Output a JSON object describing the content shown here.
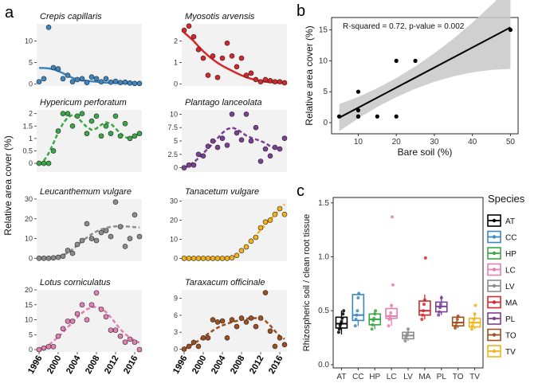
{
  "panel_letters": {
    "a": "a",
    "b": "b",
    "c": "c"
  },
  "panel_a_ylabel": "Relative area cover (%)",
  "chart_data": [
    {
      "panel": "a",
      "type": "scatter",
      "title": "Crepis capillaris",
      "color": "#3b87c4",
      "x": [
        1996,
        1997,
        1998,
        1999,
        2000,
        2001,
        2002,
        2003,
        2004,
        2005,
        2006,
        2007,
        2008,
        2009,
        2010,
        2011,
        2012,
        2013,
        2014,
        2015,
        2016,
        2017
      ],
      "y": [
        0.5,
        1.2,
        13.2,
        3.8,
        3.5,
        1.2,
        2.0,
        0.5,
        1.0,
        1.2,
        0.3,
        1.6,
        1.2,
        0.5,
        1.2,
        0.4,
        0.6,
        0.3,
        0.4,
        0.2,
        0.1,
        0.1
      ],
      "fit": [
        3.7,
        3.7,
        3.6,
        3.4,
        3.0,
        2.5,
        1.9,
        1.4,
        1.0,
        0.8,
        0.7,
        0.6,
        0.5,
        0.4,
        0.3,
        0.25,
        0.2,
        0.15,
        0.1,
        0.1,
        0.1,
        0.1
      ],
      "ylim": [
        -0.5,
        14
      ],
      "yticks": [
        0,
        5,
        10
      ]
    },
    {
      "panel": "a",
      "type": "scatter",
      "title": "Myosotis arvensis",
      "color": "#d7262b",
      "x": [
        1996,
        1997,
        1998,
        1999,
        2000,
        2001,
        2002,
        2003,
        2004,
        2005,
        2006,
        2007,
        2008,
        2009,
        2010,
        2011,
        2012,
        2013,
        2014,
        2015,
        2016,
        2017
      ],
      "y": [
        2.5,
        2.7,
        2.2,
        1.6,
        1.2,
        0.4,
        1.3,
        0.3,
        1.2,
        1.9,
        1.3,
        0.8,
        1.2,
        0.4,
        0.5,
        0.2,
        0.1,
        0.2,
        0.15,
        0.1,
        0.1,
        0.05
      ],
      "fit": [
        2.4,
        2.2,
        2.0,
        1.75,
        1.52,
        1.32,
        1.14,
        0.98,
        0.84,
        0.72,
        0.61,
        0.5,
        0.4,
        0.31,
        0.24,
        0.18,
        0.13,
        0.1,
        0.08,
        0.07,
        0.06,
        0.05
      ],
      "ylim": [
        -0.1,
        2.8
      ],
      "yticks": [
        0,
        1,
        2
      ]
    },
    {
      "panel": "a",
      "type": "scatter",
      "title": "Hypericum perforatum",
      "color": "#3aa846",
      "x": [
        1996,
        1997,
        1998,
        1999,
        2000,
        2001,
        2002,
        2003,
        2004,
        2005,
        2006,
        2007,
        2008,
        2009,
        2010,
        2011,
        2012,
        2013,
        2014,
        2015,
        2016,
        2017
      ],
      "y": [
        0.0,
        0.0,
        0.0,
        0.5,
        1.3,
        2.0,
        2.0,
        1.5,
        1.9,
        2.0,
        1.2,
        1.7,
        1.9,
        1.1,
        1.5,
        1.2,
        1.9,
        1.1,
        1.6,
        1.0,
        1.1,
        1.2
      ],
      "fit": [
        null,
        0.1,
        0.4,
        0.8,
        1.25,
        1.6,
        1.85,
        1.95,
        1.85,
        1.65,
        1.45,
        1.35,
        1.4,
        1.55,
        1.65,
        1.6,
        1.4,
        1.2,
        1.05,
        1.0,
        1.1,
        1.2
      ],
      "ylim": [
        -0.35,
        2.15
      ],
      "yticks": [
        0.0,
        0.5,
        1.0,
        1.5,
        2.0
      ]
    },
    {
      "panel": "a",
      "type": "scatter",
      "title": "Plantago lanceolata",
      "color": "#7b3f96",
      "x": [
        1996,
        1997,
        1998,
        1999,
        2000,
        2001,
        2002,
        2003,
        2004,
        2005,
        2006,
        2007,
        2008,
        2009,
        2010,
        2011,
        2012,
        2013,
        2014,
        2015,
        2016,
        2017
      ],
      "y": [
        0.0,
        0.5,
        0.5,
        2.5,
        2.2,
        4.0,
        5.0,
        3.8,
        5.5,
        4.2,
        10.0,
        6.5,
        5.2,
        10.0,
        5.0,
        7.5,
        1.2,
        3.5,
        2.2,
        3.8,
        3.5,
        5.5
      ],
      "fit": [
        0.0,
        0.4,
        1.0,
        1.8,
        2.7,
        3.6,
        4.5,
        5.5,
        6.5,
        7.2,
        7.5,
        7.2,
        6.6,
        6.0,
        5.6,
        5.3,
        5.0,
        4.6,
        4.0,
        3.6,
        3.4,
        3.6
      ],
      "ylim": [
        -0.8,
        10.8
      ],
      "yticks": [
        0.0,
        2.5,
        5.0,
        7.5,
        10.0
      ]
    },
    {
      "panel": "a",
      "type": "scatter",
      "title": "Leucanthemum vulgare",
      "color": "#8c8c8c",
      "x": [
        1996,
        1997,
        1998,
        1999,
        2000,
        2001,
        2002,
        2003,
        2004,
        2005,
        2006,
        2007,
        2008,
        2009,
        2010,
        2011,
        2012,
        2013,
        2014,
        2015,
        2016,
        2017
      ],
      "y": [
        0.0,
        0.0,
        0.0,
        0.2,
        0.5,
        1.0,
        4.0,
        2.5,
        7.0,
        9.0,
        17.5,
        10.0,
        9.0,
        13.0,
        14.0,
        11.0,
        28.5,
        16.0,
        6.0,
        10.0,
        22.0,
        11.0
      ],
      "fit": [
        0.0,
        0.0,
        0.1,
        0.3,
        0.8,
        1.6,
        2.8,
        4.5,
        6.5,
        8.6,
        10.5,
        12.2,
        13.6,
        14.6,
        15.4,
        15.9,
        16.2,
        16.3,
        16.2,
        16.0,
        15.8,
        15.6
      ],
      "ylim": [
        -1.5,
        30
      ],
      "yticks": [
        0,
        10,
        20,
        30
      ]
    },
    {
      "panel": "a",
      "type": "scatter",
      "title": "Tanacetum vulgare",
      "color": "#f4b218",
      "x": [
        1996,
        1997,
        1998,
        1999,
        2000,
        2001,
        2002,
        2003,
        2004,
        2005,
        2006,
        2007,
        2008,
        2009,
        2010,
        2011,
        2012,
        2013,
        2014,
        2015,
        2016,
        2017
      ],
      "y": [
        0.0,
        0.0,
        0.0,
        0.0,
        0.0,
        0.0,
        0.0,
        0.0,
        0.0,
        0.0,
        0.3,
        1.5,
        4.0,
        6.0,
        9.0,
        11.0,
        16.0,
        19.0,
        20.0,
        23.0,
        26.0,
        23.0
      ],
      "fit": [
        0.0,
        0.0,
        0.0,
        0.0,
        0.0,
        0.0,
        0.0,
        0.0,
        0.0,
        0.1,
        0.8,
        2.2,
        4.3,
        6.7,
        9.3,
        12.0,
        14.8,
        17.6,
        20.3,
        23.0,
        25.7,
        28.3
      ],
      "ylim": [
        -1.5,
        31
      ],
      "yticks": [
        0,
        10,
        20,
        30
      ]
    },
    {
      "panel": "a",
      "type": "scatter",
      "title": "Lotus corniculatus",
      "color": "#e47fb3",
      "x": [
        1996,
        1997,
        1998,
        1999,
        2000,
        2001,
        2002,
        2003,
        2004,
        2005,
        2006,
        2007,
        2008,
        2009,
        2010,
        2011,
        2012,
        2013,
        2014,
        2015,
        2016,
        2017
      ],
      "y": [
        0.0,
        0.5,
        1.0,
        1.0,
        4.5,
        7.0,
        9.5,
        9.5,
        12.0,
        15.0,
        10.0,
        15.0,
        19.0,
        13.5,
        11.0,
        6.5,
        6.5,
        4.5,
        2.5,
        3.5,
        2.5,
        0.0
      ],
      "fit": [
        null,
        0.5,
        1.5,
        2.8,
        4.2,
        5.8,
        7.5,
        9.2,
        10.8,
        12.3,
        13.5,
        14.2,
        14.3,
        13.8,
        12.6,
        10.8,
        8.8,
        6.8,
        5.2,
        4.0,
        3.0,
        2.3
      ],
      "ylim": [
        -0.8,
        20
      ],
      "yticks": [
        0,
        5,
        10,
        15,
        20
      ]
    },
    {
      "panel": "a",
      "type": "scatter",
      "title": "Taraxacum officinale",
      "color": "#9d4f1e",
      "x": [
        1996,
        1997,
        1998,
        1999,
        2000,
        2001,
        2002,
        2003,
        2004,
        2005,
        2006,
        2007,
        2008,
        2009,
        2010,
        2011,
        2012,
        2013,
        2014,
        2015,
        2016,
        2017
      ],
      "y": [
        0.0,
        0.5,
        1.2,
        0.5,
        2.0,
        2.0,
        5.2,
        4.8,
        5.0,
        2.0,
        5.2,
        4.0,
        5.5,
        4.8,
        5.5,
        4.0,
        5.5,
        10.0,
        3.2,
        0.5,
        2.0,
        0.8
      ],
      "fit": [
        0.0,
        0.5,
        1.0,
        1.5,
        2.1,
        2.7,
        3.3,
        3.8,
        4.2,
        4.5,
        4.8,
        5.0,
        5.2,
        5.4,
        5.5,
        5.5,
        5.4,
        5.0,
        4.2,
        3.2,
        2.3,
        1.8
      ],
      "ylim": [
        -0.5,
        10.5
      ],
      "yticks": [
        0,
        3,
        6,
        9
      ]
    },
    {
      "panel": "b",
      "type": "scatter",
      "xlabel": "Bare soil (%)",
      "ylabel": "Relative area cover (%)",
      "annotation": "R-squared = 0.72, p-value = 0.002",
      "x": [
        5,
        10,
        10,
        10,
        10,
        15,
        20,
        20,
        25,
        50
      ],
      "y": [
        1,
        1,
        5,
        2,
        1,
        1,
        10,
        1,
        10,
        15
      ],
      "fit_line": {
        "x": [
          5,
          50
        ],
        "y": [
          0.8,
          15.4
        ]
      },
      "xlim": [
        3,
        52
      ],
      "ylim": [
        -1.8,
        17
      ],
      "xticks": [
        10,
        20,
        30,
        40,
        50
      ],
      "yticks": [
        0,
        5,
        10,
        15
      ]
    },
    {
      "panel": "c",
      "type": "boxplot",
      "ylabel": "Rhizospheric soil / clean root tissue",
      "legend_title": "Species",
      "categories": [
        "AT",
        "CC",
        "HP",
        "LC",
        "LV",
        "MA",
        "PL",
        "TO",
        "TV"
      ],
      "colors": [
        "#000000",
        "#3b87c4",
        "#3aa846",
        "#e47fb3",
        "#8c8c8c",
        "#d7262b",
        "#7b3f96",
        "#9d4f1e",
        "#f4b218"
      ],
      "boxes": [
        {
          "min": 0.28,
          "q1": 0.34,
          "median": 0.38,
          "q3": 0.44,
          "max": 0.5
        },
        {
          "min": 0.36,
          "q1": 0.41,
          "median": 0.46,
          "q3": 0.65,
          "max": 0.66
        },
        {
          "min": 0.33,
          "q1": 0.37,
          "median": 0.42,
          "q3": 0.47,
          "max": 0.5
        },
        {
          "min": 0.36,
          "q1": 0.43,
          "median": 0.45,
          "q3": 0.52,
          "max": 0.56
        },
        {
          "min": 0.22,
          "q1": 0.24,
          "median": 0.27,
          "q3": 0.3,
          "max": 0.33
        },
        {
          "min": 0.42,
          "q1": 0.46,
          "median": 0.5,
          "q3": 0.59,
          "max": 0.65
        },
        {
          "min": 0.46,
          "q1": 0.49,
          "median": 0.54,
          "q3": 0.58,
          "max": 0.64
        },
        {
          "min": 0.34,
          "q1": 0.36,
          "median": 0.39,
          "q3": 0.44,
          "max": 0.45
        },
        {
          "min": 0.33,
          "q1": 0.35,
          "median": 0.39,
          "q3": 0.43,
          "max": 0.47
        }
      ],
      "points": [
        [
          0.3,
          0.33,
          0.36,
          0.38,
          0.4,
          0.43,
          0.47,
          0.5
        ],
        [
          0.36,
          0.42,
          0.46,
          0.5,
          0.62,
          0.66
        ],
        [
          0.33,
          0.37,
          0.41,
          0.43,
          0.47,
          0.5
        ],
        [
          0.36,
          0.42,
          0.45,
          0.48,
          0.55,
          1.37,
          0.74
        ],
        [
          0.22,
          0.25,
          0.27,
          0.29,
          0.33
        ],
        [
          0.42,
          0.46,
          0.5,
          0.56,
          0.6,
          0.99
        ],
        [
          0.46,
          0.49,
          0.53,
          0.56,
          0.62
        ],
        [
          0.34,
          0.36,
          0.39,
          0.42,
          0.45
        ],
        [
          0.33,
          0.36,
          0.39,
          0.42,
          0.47,
          0.55
        ]
      ],
      "ylim": [
        -0.03,
        1.55
      ],
      "yticks": [
        0.0,
        0.5,
        1.0,
        1.5
      ],
      "ytick_labels": [
        "0.0",
        "0.5",
        "1.0",
        "1.5"
      ]
    }
  ],
  "year_ticks": [
    "1996",
    "2000",
    "2004",
    "2008",
    "2012",
    "2016"
  ]
}
